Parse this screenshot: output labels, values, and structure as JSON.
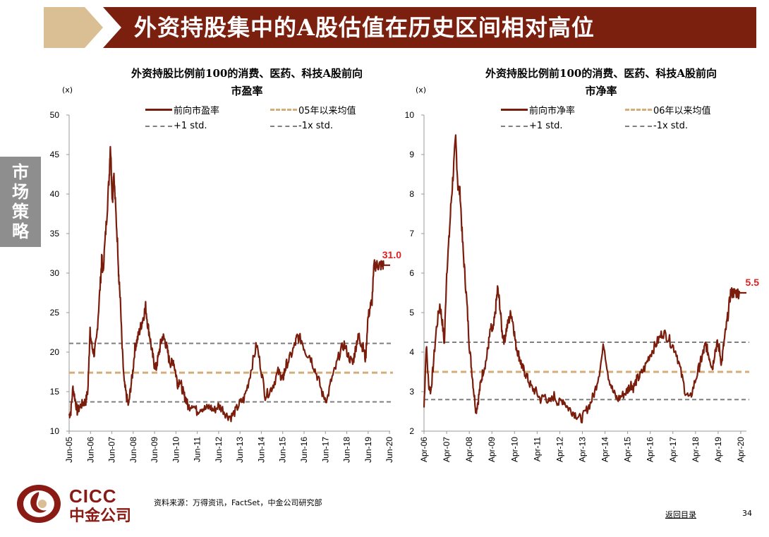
{
  "header": {
    "title": "外资持股集中的A股估值在历史区间相对高位"
  },
  "side_tab": {
    "label": "市场策略"
  },
  "footer": {
    "logo_en": "CICC",
    "logo_cn": "中金公司",
    "source": "资料来源：万得资讯，FactSet，中金公司研究部",
    "back_link": "返回目录",
    "page_number": "34"
  },
  "colors": {
    "series": "#7a1d0c",
    "mean": "#d4ad78",
    "std": "#7f7f7f",
    "callout": "#e02020",
    "header": "#7b1f0e",
    "header_accent": "#d9bf93"
  },
  "chart_data": [
    {
      "type": "line",
      "title": "外资持股比例前100的消费、医药、科技A股前向市盈率",
      "title_line1": "外资持股比例前100的消费、医药、科技A股前向",
      "title_line2": "市盈率",
      "unit": "(x)",
      "ylim": [
        10,
        50
      ],
      "yticks": [
        "10",
        "15",
        "20",
        "25",
        "30",
        "35",
        "40",
        "45",
        "50"
      ],
      "xticks": [
        "Jun-05",
        "Jun-06",
        "Jun-07",
        "Jun-08",
        "Jun-09",
        "Jun-10",
        "Jun-11",
        "Jun-12",
        "Jun-13",
        "Jun-14",
        "Jun-15",
        "Jun-16",
        "Jun-17",
        "Jun-18",
        "Jun-19",
        "Jun-20"
      ],
      "x_start": 2005.42,
      "x_end": 2020.45,
      "callout": "31.0",
      "legend": {
        "series": "前向市盈率",
        "mean": "05年以来均值",
        "plus_std": "+1 std.",
        "minus_std": "-1x std."
      },
      "mean": 17.4,
      "plus_std": 21.1,
      "minus_std": 13.7,
      "series": [
        {
          "name": "前向市盈率",
          "x": [
            2005.42,
            2005.5,
            2005.6,
            2005.7,
            2005.8,
            2005.95,
            2006.1,
            2006.2,
            2006.3,
            2006.35,
            2006.4,
            2006.5,
            2006.6,
            2006.7,
            2006.8,
            2006.9,
            2006.95,
            2007.0,
            2007.1,
            2007.2,
            2007.3,
            2007.35,
            2007.45,
            2007.5,
            2007.6,
            2007.7,
            2007.75,
            2007.8,
            2007.9,
            2008.0,
            2008.1,
            2008.2,
            2008.3,
            2008.4,
            2008.5,
            2008.6,
            2008.7,
            2008.8,
            2008.9,
            2009.0,
            2009.1,
            2009.2,
            2009.3,
            2009.4,
            2009.5,
            2009.6,
            2009.7,
            2009.8,
            2009.9,
            2010.0,
            2010.1,
            2010.2,
            2010.3,
            2010.4,
            2010.5,
            2010.6,
            2010.7,
            2010.8,
            2010.9,
            2011.0,
            2011.2,
            2011.4,
            2011.6,
            2011.8,
            2012.0,
            2012.2,
            2012.4,
            2012.6,
            2012.8,
            2013.0,
            2013.2,
            2013.4,
            2013.6,
            2013.8,
            2014.0,
            2014.2,
            2014.4,
            2014.6,
            2014.8,
            2015.0,
            2015.2,
            2015.35,
            2015.42,
            2015.5,
            2015.6,
            2015.8,
            2016.0,
            2016.1,
            2016.3,
            2016.5,
            2016.7,
            2016.9,
            2017.1,
            2017.3,
            2017.5,
            2017.7,
            2017.9,
            2018.1,
            2018.3,
            2018.5,
            2018.7,
            2018.8,
            2018.9,
            2019.0,
            2019.1,
            2019.2,
            2019.3,
            2019.4,
            2019.5,
            2019.6,
            2019.7,
            2019.8,
            2019.9,
            2020.0,
            2020.1,
            2020.2,
            2020.3,
            2020.38,
            2020.45
          ],
          "values": [
            12.0,
            12.5,
            15.5,
            14.0,
            12.5,
            13.2,
            13.6,
            13.8,
            15.2,
            19.5,
            22.5,
            20.5,
            19.8,
            21.5,
            25.5,
            29.5,
            32.0,
            30.0,
            34.0,
            38.0,
            42.5,
            46.5,
            39.0,
            43.0,
            38.0,
            33.0,
            29.0,
            27.5,
            20.5,
            16.0,
            14.5,
            13.2,
            15.5,
            17.5,
            20.5,
            21.5,
            22.5,
            23.5,
            24.5,
            25.8,
            23.5,
            22.0,
            20.0,
            18.5,
            18.0,
            19.5,
            21.0,
            22.0,
            21.5,
            20.5,
            19.0,
            18.5,
            19.0,
            17.5,
            16.0,
            16.5,
            15.5,
            14.5,
            14.0,
            13.0,
            13.5,
            12.5,
            13.0,
            12.8,
            13.1,
            12.6,
            13.2,
            12.8,
            12.0,
            11.8,
            12.5,
            13.5,
            14.0,
            16.0,
            18.5,
            21.0,
            18.0,
            14.5,
            15.0,
            16.0,
            17.5,
            17.0,
            16.5,
            17.5,
            18.5,
            19.5,
            21.0,
            22.0,
            21.5,
            20.0,
            19.5,
            18.0,
            16.5,
            14.5,
            14.0,
            16.5,
            18.0,
            20.0,
            21.0,
            19.5,
            18.5,
            20.0,
            21.5,
            22.0,
            21.0,
            20.5,
            19.0,
            24.0,
            25.5,
            26.5,
            31.0,
            31.0,
            31.0,
            31.0,
            31.0,
            31.0,
            31.0,
            31.0,
            31.0
          ]
        }
      ]
    },
    {
      "type": "line",
      "title": "外资持股比例前100的消费、医药、科技A股前向市净率",
      "title_line1": "外资持股比例前100的消费、医药、科技A股前向",
      "title_line2": "市净率",
      "unit": "(x)",
      "ylim": [
        2,
        10
      ],
      "yticks": [
        "2",
        "3",
        "4",
        "5",
        "6",
        "7",
        "8",
        "9",
        "10"
      ],
      "xticks": [
        "Apr-06",
        "Apr-07",
        "Apr-08",
        "Apr-09",
        "Apr-10",
        "Apr-11",
        "Apr-12",
        "Apr-13",
        "Apr-14",
        "Apr-15",
        "Apr-16",
        "Apr-17",
        "Apr-18",
        "Apr-19",
        "Apr-20"
      ],
      "x_start": 2006.25,
      "x_end": 2020.5,
      "callout": "5.5",
      "legend": {
        "series": "前向市净率",
        "mean": "06年以来均值",
        "plus_std": "+1 std.",
        "minus_std": "-1x std."
      },
      "mean": 3.5,
      "plus_std": 4.25,
      "minus_std": 2.8,
      "series": [
        {
          "name": "前向市净率",
          "x": [
            2006.25,
            2006.35,
            2006.45,
            2006.55,
            2006.65,
            2006.8,
            2006.95,
            2007.05,
            2007.15,
            2007.25,
            2007.35,
            2007.45,
            2007.55,
            2007.65,
            2007.75,
            2007.85,
            2007.95,
            2008.05,
            2008.15,
            2008.25,
            2008.35,
            2008.45,
            2008.55,
            2008.65,
            2008.75,
            2008.85,
            2009.0,
            2009.1,
            2009.2,
            2009.3,
            2009.4,
            2009.5,
            2009.6,
            2009.7,
            2009.8,
            2009.9,
            2010.0,
            2010.1,
            2010.2,
            2010.3,
            2010.4,
            2010.5,
            2010.6,
            2010.7,
            2010.85,
            2011.0,
            2011.2,
            2011.4,
            2011.6,
            2011.8,
            2012.0,
            2012.2,
            2012.4,
            2012.6,
            2012.8,
            2013.0,
            2013.2,
            2013.4,
            2013.6,
            2013.8,
            2014.0,
            2014.2,
            2014.4,
            2014.6,
            2014.8,
            2015.0,
            2015.2,
            2015.3,
            2015.4,
            2015.5,
            2015.65,
            2015.8,
            2016.0,
            2016.2,
            2016.4,
            2016.6,
            2016.8,
            2017.0,
            2017.2,
            2017.4,
            2017.6,
            2017.8,
            2018.0,
            2018.2,
            2018.4,
            2018.5,
            2018.6,
            2018.7,
            2018.8,
            2018.9,
            2019.0,
            2019.1,
            2019.2,
            2019.3,
            2019.4,
            2019.5,
            2019.6,
            2019.7,
            2019.8,
            2019.9,
            2020.0,
            2020.1,
            2020.2,
            2020.3,
            2020.4,
            2020.5
          ],
          "values": [
            2.6,
            4.2,
            3.2,
            3.0,
            3.6,
            4.6,
            5.2,
            4.8,
            4.2,
            6.0,
            6.8,
            7.8,
            8.6,
            9.4,
            8.2,
            8.0,
            6.8,
            6.0,
            5.2,
            4.2,
            3.6,
            3.0,
            2.5,
            2.8,
            3.2,
            3.5,
            3.8,
            4.2,
            4.6,
            4.5,
            5.0,
            5.6,
            5.2,
            4.5,
            4.3,
            4.6,
            4.8,
            5.0,
            4.7,
            4.2,
            4.0,
            3.8,
            3.6,
            3.5,
            3.3,
            3.1,
            3.0,
            2.8,
            2.9,
            2.7,
            2.9,
            2.7,
            2.8,
            2.6,
            2.5,
            2.4,
            2.3,
            2.5,
            2.7,
            3.0,
            3.5,
            4.2,
            3.4,
            3.0,
            2.8,
            2.9,
            3.0,
            3.1,
            3.2,
            3.1,
            3.3,
            3.4,
            3.6,
            3.9,
            4.1,
            4.3,
            4.5,
            4.4,
            4.2,
            4.0,
            3.5,
            3.0,
            2.8,
            3.2,
            3.6,
            3.8,
            4.0,
            4.2,
            4.0,
            3.8,
            3.6,
            4.0,
            4.2,
            4.1,
            3.7,
            4.2,
            4.6,
            5.0,
            5.5,
            5.5,
            5.5,
            5.5,
            5.5,
            5.5,
            5.5,
            5.5
          ]
        }
      ]
    }
  ]
}
